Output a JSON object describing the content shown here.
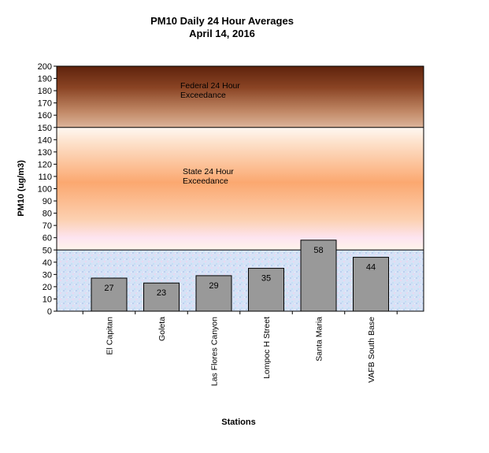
{
  "chart_data": {
    "type": "bar",
    "title": "PM10 Daily 24 Hour Averages",
    "subtitle": "April 14, 2016",
    "xlabel": "Stations",
    "ylabel": "PM10 (ug/m3)",
    "ylim": [
      0,
      200
    ],
    "ytick_step": 10,
    "categories": [
      "El Capitan",
      "Goleta",
      "Las Flores Canyon",
      "Lompoc H Street",
      "Santa Maria",
      "VAFB South Base"
    ],
    "values": [
      27,
      23,
      29,
      35,
      58,
      44
    ],
    "bar_color": "#999999",
    "zones": [
      {
        "from": 150,
        "to": 200,
        "label_lines": [
          "Federal 24 Hour",
          "Exceedance"
        ],
        "colors": [
          "#6b2a10",
          "#d9ad90"
        ]
      },
      {
        "from": 50,
        "to": 150,
        "label_lines": [
          "State 24 Hour",
          "Exceedance"
        ],
        "colors": [
          "#fff6f0",
          "#fbb07a",
          "#fde6f2"
        ]
      },
      {
        "from": 0,
        "to": 50,
        "label_lines": [],
        "colors": [
          "#dde8f8",
          "#c8d6f2"
        ]
      }
    ]
  }
}
